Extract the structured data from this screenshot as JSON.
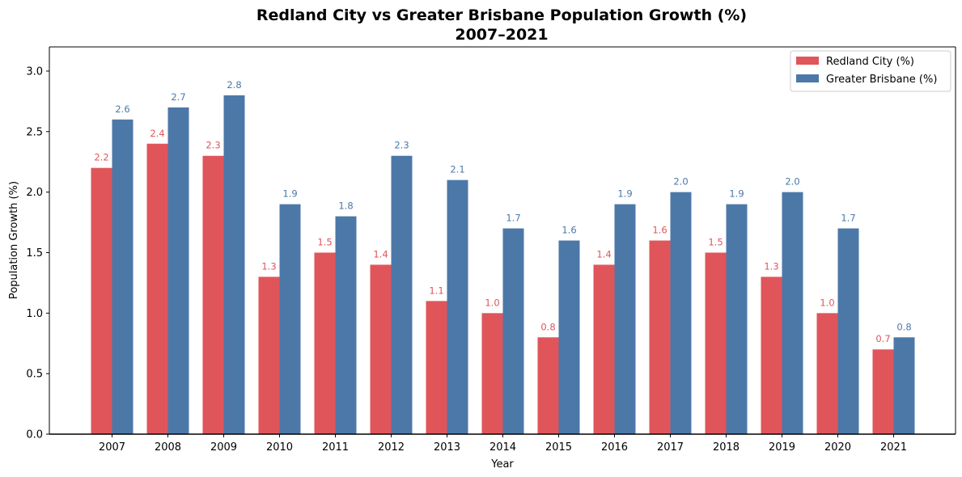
{
  "chart_data": {
    "type": "bar",
    "title": "Redland City vs Greater Brisbane Population Growth (%)",
    "subtitle": "2007–2021",
    "xlabel": "Year",
    "ylabel": "Population Growth (%)",
    "categories": [
      "2007",
      "2008",
      "2009",
      "2010",
      "2011",
      "2012",
      "2013",
      "2014",
      "2015",
      "2016",
      "2017",
      "2018",
      "2019",
      "2020",
      "2021"
    ],
    "series": [
      {
        "name": "Redland City (%)",
        "color": "#e0555a",
        "values": [
          2.2,
          2.4,
          2.3,
          1.3,
          1.5,
          1.4,
          1.1,
          1.0,
          0.8,
          1.4,
          1.6,
          1.5,
          1.3,
          1.0,
          0.7
        ],
        "labels": [
          "2.2",
          "2.4",
          "2.3",
          "1.3",
          "1.5",
          "1.4",
          "1.1",
          "1.0",
          "0.8",
          "1.4",
          "1.6",
          "1.5",
          "1.3",
          "1.0",
          "0.7"
        ]
      },
      {
        "name": "Greater Brisbane (%)",
        "color": "#4c78a8",
        "values": [
          2.6,
          2.7,
          2.8,
          1.9,
          1.8,
          2.3,
          2.1,
          1.7,
          1.6,
          1.9,
          2.0,
          1.9,
          2.0,
          1.7,
          0.8
        ],
        "labels": [
          "2.6",
          "2.7",
          "2.8",
          "1.9",
          "1.8",
          "2.3",
          "2.1",
          "1.7",
          "1.6",
          "1.9",
          "2.0",
          "1.9",
          "2.0",
          "1.7",
          "0.8"
        ]
      }
    ],
    "ylim": [
      0,
      3.2
    ],
    "yticks": [
      "0.0",
      "0.5",
      "1.0",
      "1.5",
      "2.0",
      "2.5",
      "3.0"
    ],
    "grid": false,
    "legend_position": "top-right"
  }
}
